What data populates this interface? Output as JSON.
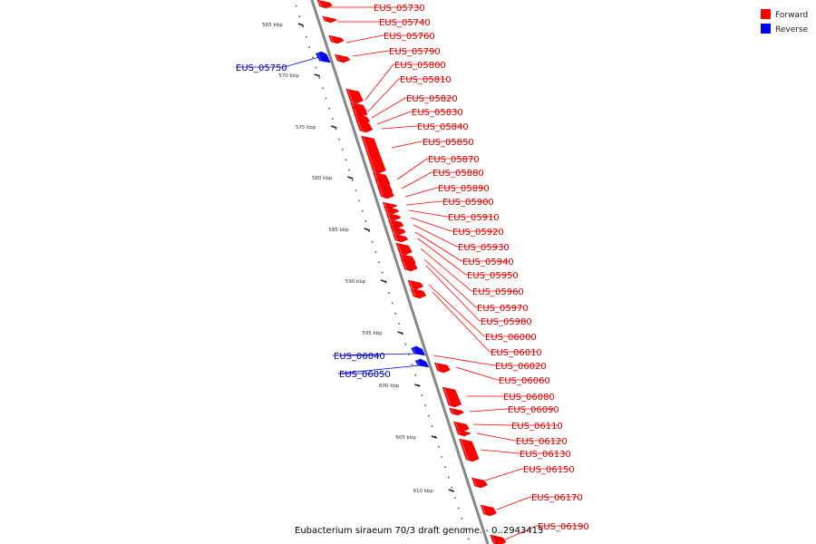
{
  "title": "Eubacterium siraeum 70/3 draft genome. - 0..2943413",
  "legend": {
    "forward": {
      "label": "Forward",
      "color": "#ff0000"
    },
    "reverse": {
      "label": "Reverse",
      "color": "#0000ff"
    }
  },
  "colors": {
    "backbone": "#888888",
    "forward_label": "#cc0000",
    "reverse_label": "#000099",
    "tick": "#222222"
  },
  "scale": {
    "kbp_ticks": [
      "565 kbp",
      "570 kbp",
      "575 kbp",
      "580 kbp",
      "585 kbp",
      "590 kbp",
      "595 kbp",
      "600 kbp",
      "605 kbp",
      "610 kbp"
    ]
  },
  "genes": [
    {
      "label": "EUS_05730",
      "strand": "forward"
    },
    {
      "label": "EUS_05740",
      "strand": "forward"
    },
    {
      "label": "EUS_05760",
      "strand": "forward"
    },
    {
      "label": "EUS_05750",
      "strand": "reverse"
    },
    {
      "label": "EUS_05790",
      "strand": "forward"
    },
    {
      "label": "EUS_05800",
      "strand": "forward"
    },
    {
      "label": "EUS_05810",
      "strand": "forward"
    },
    {
      "label": "EUS_05820",
      "strand": "forward"
    },
    {
      "label": "EUS_05830",
      "strand": "forward"
    },
    {
      "label": "EUS_05840",
      "strand": "forward"
    },
    {
      "label": "EUS_05850",
      "strand": "forward"
    },
    {
      "label": "EUS_05870",
      "strand": "forward"
    },
    {
      "label": "EUS_05880",
      "strand": "forward"
    },
    {
      "label": "EUS_05890",
      "strand": "forward"
    },
    {
      "label": "EUS_05900",
      "strand": "forward"
    },
    {
      "label": "EUS_05910",
      "strand": "forward"
    },
    {
      "label": "EUS_05920",
      "strand": "forward"
    },
    {
      "label": "EUS_05930",
      "strand": "forward"
    },
    {
      "label": "EUS_05940",
      "strand": "forward"
    },
    {
      "label": "EUS_05950",
      "strand": "forward"
    },
    {
      "label": "EUS_05960",
      "strand": "forward"
    },
    {
      "label": "EUS_05970",
      "strand": "forward"
    },
    {
      "label": "EUS_05980",
      "strand": "forward"
    },
    {
      "label": "EUS_06000",
      "strand": "forward"
    },
    {
      "label": "EUS_06010",
      "strand": "forward"
    },
    {
      "label": "EUS_06040",
      "strand": "reverse"
    },
    {
      "label": "EUS_06050",
      "strand": "reverse"
    },
    {
      "label": "EUS_06020",
      "strand": "forward"
    },
    {
      "label": "EUS_06060",
      "strand": "forward"
    },
    {
      "label": "EUS_06080",
      "strand": "forward"
    },
    {
      "label": "EUS_06090",
      "strand": "forward"
    },
    {
      "label": "EUS_06110",
      "strand": "forward"
    },
    {
      "label": "EUS_06120",
      "strand": "forward"
    },
    {
      "label": "EUS_06130",
      "strand": "forward"
    },
    {
      "label": "EUS_06150",
      "strand": "forward"
    },
    {
      "label": "EUS_06170",
      "strand": "forward"
    },
    {
      "label": "EUS_06190",
      "strand": "forward"
    }
  ]
}
